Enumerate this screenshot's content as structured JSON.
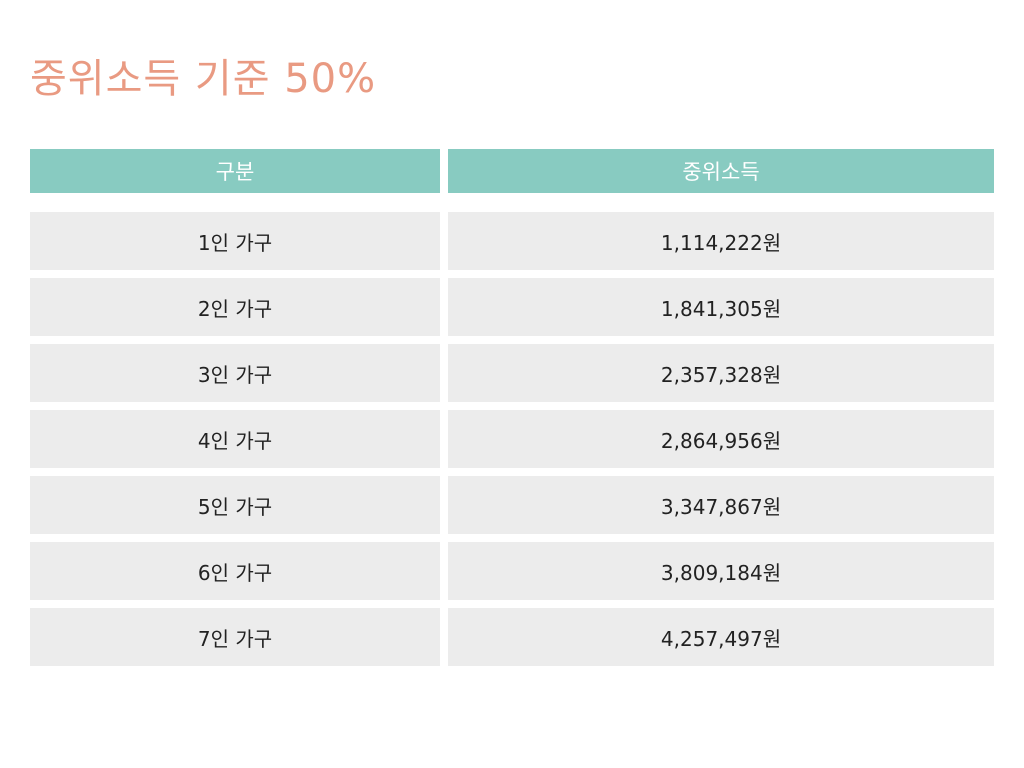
{
  "title": "중위소득 기준 50%",
  "table": {
    "headers": [
      "구분",
      "중위소득"
    ],
    "rows": [
      {
        "category": "1인 가구",
        "income": "1,114,222원"
      },
      {
        "category": "2인 가구",
        "income": "1,841,305원"
      },
      {
        "category": "3인 가구",
        "income": "2,357,328원"
      },
      {
        "category": "4인 가구",
        "income": "2,864,956원"
      },
      {
        "category": "5인 가구",
        "income": "3,347,867원"
      },
      {
        "category": "6인 가구",
        "income": "3,809,184원"
      },
      {
        "category": "7인 가구",
        "income": "4,257,497원"
      }
    ]
  },
  "colors": {
    "title": "#E99A82",
    "header_bg": "#88CBC1",
    "row_bg": "#ECECEC"
  }
}
